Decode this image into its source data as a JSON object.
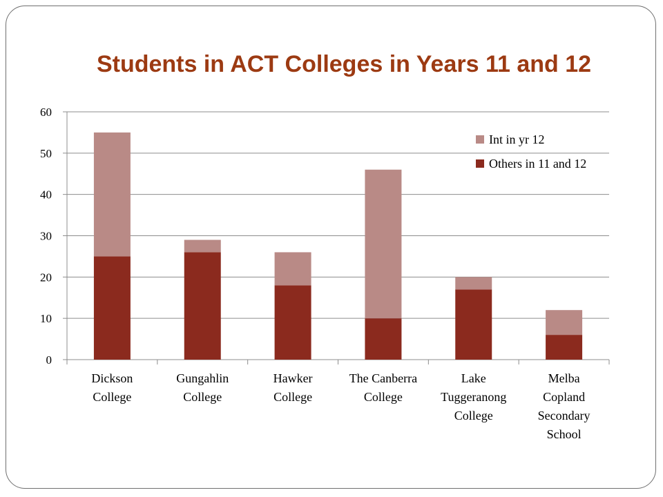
{
  "chart_data": {
    "type": "bar",
    "stacked": true,
    "title": "Students in ACT Colleges in Years 11 and 12",
    "categories": [
      [
        "Dickson",
        "College"
      ],
      [
        "Gungahlin",
        "College"
      ],
      [
        "Hawker",
        "College"
      ],
      [
        "The Canberra",
        "College"
      ],
      [
        "Lake",
        "Tuggeranong",
        "College"
      ],
      [
        "Melba",
        "Copland",
        "Secondary",
        "School"
      ]
    ],
    "series": [
      {
        "name": "Others in 11 and 12",
        "color": "#8b2a1e",
        "values": [
          25,
          26,
          18,
          10,
          17,
          6
        ]
      },
      {
        "name": "Int in yr 12",
        "color": "#b98a86",
        "values": [
          30,
          3,
          8,
          36,
          3,
          6
        ]
      }
    ],
    "legend_order": [
      1,
      0
    ],
    "legend_position": "top-right",
    "ylim": [
      0,
      60
    ],
    "yticks": [
      "0",
      "10",
      "20",
      "30",
      "40",
      "50",
      "60"
    ],
    "ytick_values": [
      0,
      10,
      20,
      30,
      40,
      50,
      60
    ],
    "grid": true,
    "xlabel": "",
    "ylabel": ""
  }
}
